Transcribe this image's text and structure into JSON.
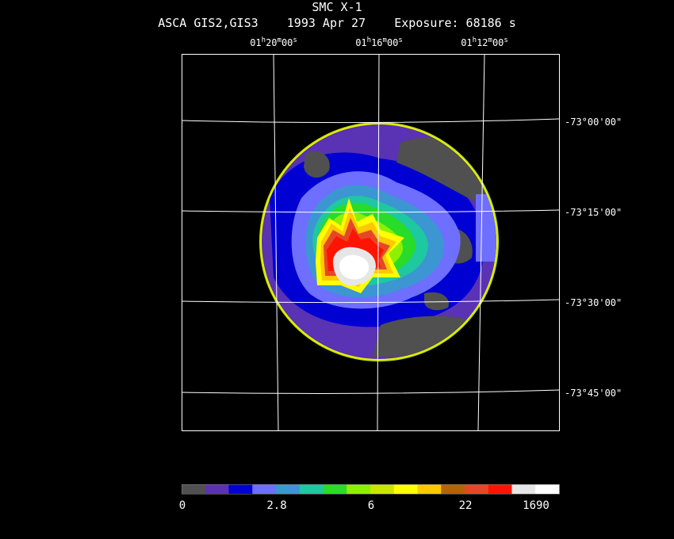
{
  "header": {
    "title": "SMC X-1",
    "subtitle": "ASCA GIS2,GIS3    1993 Apr 27    Exposure: 68186 s"
  },
  "ra_labels": [
    "01h20m00s",
    "01h16m00s",
    "01h12m00s"
  ],
  "dec_labels": [
    "-73°00'00\"",
    "-73°15'00\"",
    "-73°30'00\"",
    "-73°45'00\""
  ],
  "colorbar": {
    "colors": [
      "#505050",
      "#5a32b4",
      "#0000d2",
      "#6e6eff",
      "#3c96d2",
      "#1ec8a0",
      "#28dc28",
      "#8cf000",
      "#c8e600",
      "#ffff00",
      "#ffc800",
      "#b46400",
      "#e64628",
      "#ff1400",
      "#e6e6e6",
      "#ffffff"
    ],
    "tick_labels": [
      "0",
      "2.8",
      "6",
      "22",
      "1690"
    ]
  }
}
